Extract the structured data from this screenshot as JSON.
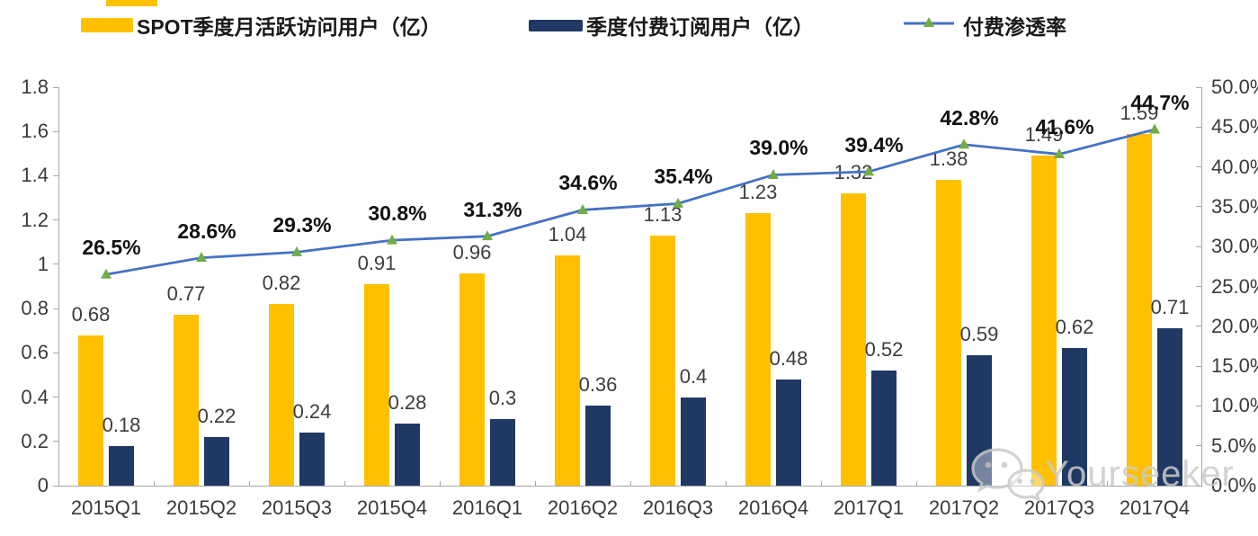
{
  "legend": {
    "items": [
      {
        "label": "SPOT季度月活跃访问用户（亿）",
        "swatch_color": "#FFC000",
        "type": "bar"
      },
      {
        "label": "季度付费订阅用户（亿）",
        "swatch_color": "#1F3864",
        "type": "bar"
      },
      {
        "label": "付费渗透率",
        "line_color": "#4472C4",
        "marker_color": "#70AD47",
        "type": "line"
      }
    ]
  },
  "watermark": {
    "text": "Yourseeker",
    "icon": "wechat-chat-bubbles-icon"
  },
  "chart_data": {
    "type": "combo-bar-line",
    "categories": [
      "2015Q1",
      "2015Q2",
      "2015Q3",
      "2015Q4",
      "2016Q1",
      "2016Q2",
      "2016Q3",
      "2016Q4",
      "2017Q1",
      "2017Q2",
      "2017Q3",
      "2017Q4"
    ],
    "series": [
      {
        "name": "SPOT季度月活跃访问用户（亿）",
        "type": "bar",
        "axis": "left",
        "color": "#FFC000",
        "values": [
          0.68,
          0.77,
          0.82,
          0.91,
          0.96,
          1.04,
          1.13,
          1.23,
          1.32,
          1.38,
          1.49,
          1.59
        ],
        "labels": [
          "0.68",
          "0.77",
          "0.82",
          "0.91",
          "0.96",
          "1.04",
          "1.13",
          "1.23",
          "1.32",
          "1.38",
          "1.49",
          "1.59"
        ]
      },
      {
        "name": "季度付费订阅用户（亿）",
        "type": "bar",
        "axis": "left",
        "color": "#1F3864",
        "values": [
          0.18,
          0.22,
          0.24,
          0.28,
          0.3,
          0.36,
          0.4,
          0.48,
          0.52,
          0.59,
          0.62,
          0.71
        ],
        "labels": [
          "0.18",
          "0.22",
          "0.24",
          "0.28",
          "0.3",
          "0.36",
          "0.4",
          "0.48",
          "0.52",
          "0.59",
          "0.62",
          "0.71"
        ]
      },
      {
        "name": "付费渗透率",
        "type": "line",
        "axis": "right",
        "color": "#4472C4",
        "marker_color": "#70AD47",
        "values": [
          26.5,
          28.6,
          29.3,
          30.8,
          31.3,
          34.6,
          35.4,
          39.0,
          39.4,
          42.8,
          41.6,
          44.7
        ],
        "labels": [
          "26.5%",
          "28.6%",
          "29.3%",
          "30.8%",
          "31.3%",
          "34.6%",
          "35.4%",
          "39.0%",
          "39.4%",
          "42.8%",
          "41.6%",
          "44.7%"
        ]
      }
    ],
    "left_axis": {
      "min": 0,
      "max": 1.8,
      "ticks": [
        "0",
        "0.2",
        "0.4",
        "0.6",
        "0.8",
        "1",
        "1.2",
        "1.4",
        "1.6",
        "1.8"
      ]
    },
    "right_axis": {
      "min": 0,
      "max": 50,
      "ticks": [
        "0.0%",
        "5.0%",
        "10.0%",
        "15.0%",
        "20.0%",
        "25.0%",
        "30.0%",
        "35.0%",
        "40.0%",
        "45.0%",
        "50.0%"
      ]
    },
    "grid": false,
    "legend_position": "top",
    "axis_color": "#A6A6A6"
  }
}
